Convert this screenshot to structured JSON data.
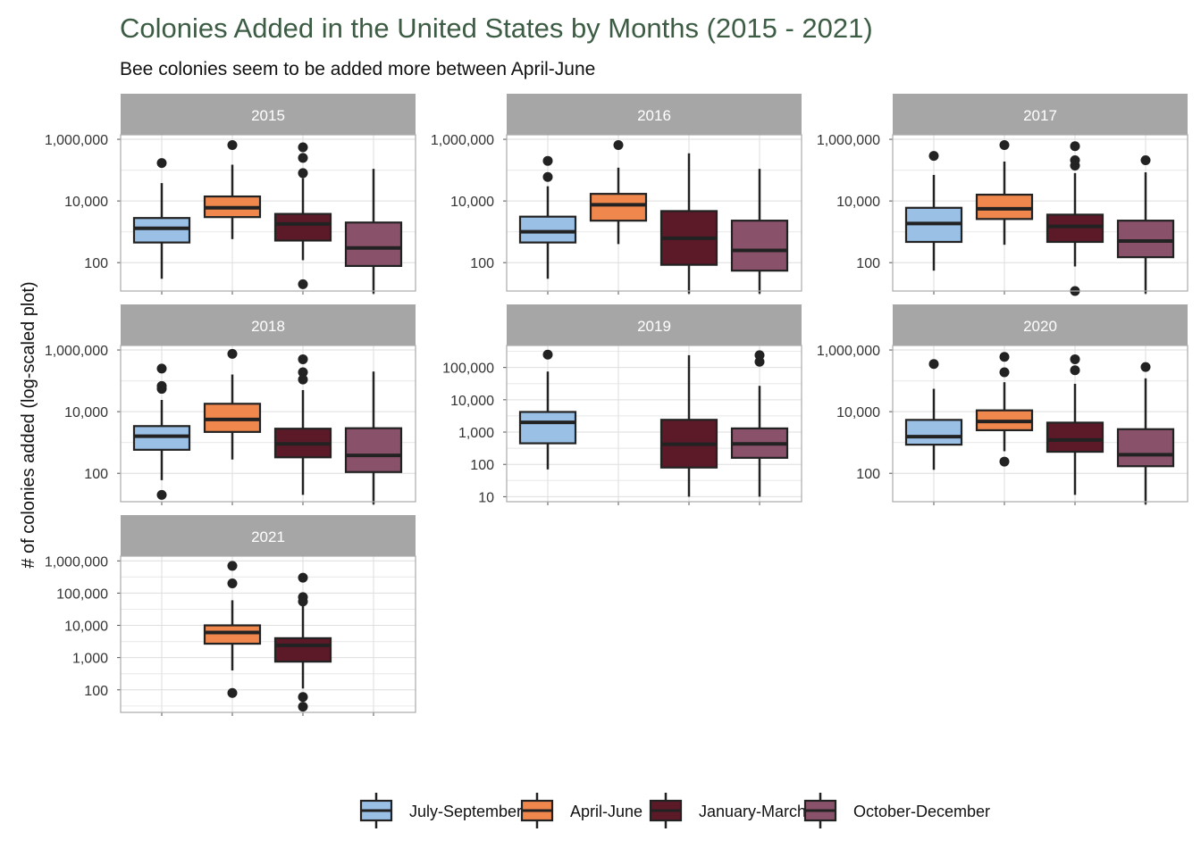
{
  "chart_data": {
    "type": "boxplot",
    "title": "Colonies Added in the United States by Months (2015 - 2021)",
    "subtitle": "Bee colonies seem to be added more between April-June",
    "ylabel": "# of colonies added (log-scaled plot)",
    "y_scale": "log10",
    "legend_position": "bottom",
    "grid": true,
    "series": [
      {
        "name": "July-September",
        "color": "#9ac0e6"
      },
      {
        "name": "April-June",
        "color": "#f0884e"
      },
      {
        "name": "January-March",
        "color": "#5c1a28"
      },
      {
        "name": "October-December",
        "color": "#8a526a"
      }
    ],
    "panels": [
      {
        "label": "2015",
        "ylim": [
          12,
          1400000
        ],
        "ticks": [
          {
            "value": 100,
            "label": "100"
          },
          {
            "value": 10000,
            "label": "10,000"
          },
          {
            "value": 1000000,
            "label": "1,000,000"
          }
        ],
        "boxes": [
          {
            "series": "July-September",
            "min": 30,
            "q1": 450,
            "median": 1300,
            "q3": 2800,
            "max": 38000,
            "outliers": [
              170000
            ]
          },
          {
            "series": "April-June",
            "min": 580,
            "q1": 3000,
            "median": 6000,
            "q3": 14000,
            "max": 150000,
            "outliers": [
              650000
            ]
          },
          {
            "series": "January-March",
            "min": 120,
            "q1": 520,
            "median": 1800,
            "q3": 3800,
            "max": 55000,
            "outliers": [
              20,
              80000,
              250000,
              550000
            ]
          },
          {
            "series": "October-December",
            "min": 10,
            "q1": 78,
            "median": 300,
            "q3": 2000,
            "max": 110000,
            "outliers": []
          }
        ]
      },
      {
        "label": "2016",
        "ylim": [
          12,
          1400000
        ],
        "ticks": [
          {
            "value": 100,
            "label": "100"
          },
          {
            "value": 10000,
            "label": "10,000"
          },
          {
            "value": 1000000,
            "label": "1,000,000"
          }
        ],
        "boxes": [
          {
            "series": "July-September",
            "min": 30,
            "q1": 450,
            "median": 1000,
            "q3": 3100,
            "max": 30000,
            "outliers": [
              60000,
              200000
            ]
          },
          {
            "series": "April-June",
            "min": 400,
            "q1": 2300,
            "median": 7500,
            "q3": 17000,
            "max": 120000,
            "outliers": [
              650000
            ]
          },
          {
            "series": "January-March",
            "min": 10,
            "q1": 85,
            "median": 620,
            "q3": 4700,
            "max": 350000,
            "outliers": []
          },
          {
            "series": "October-December",
            "min": 10,
            "q1": 55,
            "median": 250,
            "q3": 2300,
            "max": 110000,
            "outliers": []
          }
        ]
      },
      {
        "label": "2017",
        "ylim": [
          12,
          1400000
        ],
        "ticks": [
          {
            "value": 100,
            "label": "100"
          },
          {
            "value": 10000,
            "label": "10,000"
          },
          {
            "value": 1000000,
            "label": "1,000,000"
          }
        ],
        "boxes": [
          {
            "series": "July-September",
            "min": 55,
            "q1": 470,
            "median": 1850,
            "q3": 6000,
            "max": 70000,
            "outliers": [
              290000
            ]
          },
          {
            "series": "April-June",
            "min": 380,
            "q1": 2600,
            "median": 5600,
            "q3": 16000,
            "max": 190000,
            "outliers": [
              650000
            ]
          },
          {
            "series": "January-March",
            "min": 75,
            "q1": 470,
            "median": 1500,
            "q3": 3600,
            "max": 80000,
            "outliers": [
              12,
              140000,
              210000,
              600000
            ]
          },
          {
            "series": "October-December",
            "min": 10,
            "q1": 150,
            "median": 500,
            "q3": 2300,
            "max": 85000,
            "outliers": [
              210000
            ]
          }
        ]
      },
      {
        "label": "2018",
        "ylim": [
          12,
          1400000
        ],
        "ticks": [
          {
            "value": 100,
            "label": "100"
          },
          {
            "value": 10000,
            "label": "10,000"
          },
          {
            "value": 1000000,
            "label": "1,000,000"
          }
        ],
        "boxes": [
          {
            "series": "July-September",
            "min": 60,
            "q1": 580,
            "median": 1600,
            "q3": 3400,
            "max": 24000,
            "outliers": [
              20,
              55000,
              68000,
              250000
            ]
          },
          {
            "series": "April-June",
            "min": 280,
            "q1": 2200,
            "median": 5600,
            "q3": 18000,
            "max": 160000,
            "outliers": [
              750000
            ]
          },
          {
            "series": "January-March",
            "min": 20,
            "q1": 330,
            "median": 900,
            "q3": 2800,
            "max": 50000,
            "outliers": [
              110000,
              190000,
              500000
            ]
          },
          {
            "series": "October-December",
            "min": 10,
            "q1": 110,
            "median": 380,
            "q3": 2900,
            "max": 200000,
            "outliers": []
          }
        ]
      },
      {
        "label": "2019",
        "ylim": [
          7,
          480000
        ],
        "ticks": [
          {
            "value": 10,
            "label": "10"
          },
          {
            "value": 100,
            "label": "100"
          },
          {
            "value": 1000,
            "label": "1,000"
          },
          {
            "value": 10000,
            "label": "10,000"
          },
          {
            "value": 100000,
            "label": "100,000"
          }
        ],
        "boxes": [
          {
            "series": "July-September",
            "min": 70,
            "q1": 450,
            "median": 2000,
            "q3": 4200,
            "max": 75000,
            "outliers": [
              250000
            ]
          },
          {
            "series": "January-March",
            "min": 10,
            "q1": 80,
            "median": 420,
            "q3": 2400,
            "max": 240000,
            "outliers": []
          },
          {
            "series": "October-December",
            "min": 10,
            "q1": 160,
            "median": 430,
            "q3": 1300,
            "max": 27000,
            "outliers": [
              150000,
              240000
            ]
          }
        ]
      },
      {
        "label": "2020",
        "ylim": [
          12,
          1400000
        ],
        "ticks": [
          {
            "value": 100,
            "label": "100"
          },
          {
            "value": 10000,
            "label": "10,000"
          },
          {
            "value": 1000000,
            "label": "1,000,000"
          }
        ],
        "boxes": [
          {
            "series": "July-September",
            "min": 130,
            "q1": 850,
            "median": 1550,
            "q3": 5400,
            "max": 55000,
            "outliers": [
              350000
            ]
          },
          {
            "series": "April-June",
            "min": 520,
            "q1": 2500,
            "median": 4800,
            "q3": 11000,
            "max": 90000,
            "outliers": [
              240,
              190000,
              600000
            ]
          },
          {
            "series": "January-March",
            "min": 20,
            "q1": 500,
            "median": 1200,
            "q3": 4400,
            "max": 80000,
            "outliers": [
              220000,
              500000
            ]
          },
          {
            "series": "October-December",
            "min": 10,
            "q1": 170,
            "median": 400,
            "q3": 2700,
            "max": 120000,
            "outliers": [
              280000
            ]
          }
        ]
      },
      {
        "label": "2021",
        "ylim": [
          20,
          1400000
        ],
        "ticks": [
          {
            "value": 100,
            "label": "100"
          },
          {
            "value": 1000,
            "label": "1,000"
          },
          {
            "value": 10000,
            "label": "10,000"
          },
          {
            "value": 100000,
            "label": "100,000"
          },
          {
            "value": 1000000,
            "label": "1,000,000"
          }
        ],
        "boxes": [
          {
            "series": "April-June",
            "min": 400,
            "q1": 2700,
            "median": 6000,
            "q3": 10000,
            "max": 60000,
            "outliers": [
              80,
              200000,
              700000
            ]
          },
          {
            "series": "January-March",
            "min": 110,
            "q1": 750,
            "median": 2400,
            "q3": 4000,
            "max": 50000,
            "outliers": [
              30,
              60,
              55000,
              75000,
              300000
            ]
          }
        ]
      }
    ]
  }
}
